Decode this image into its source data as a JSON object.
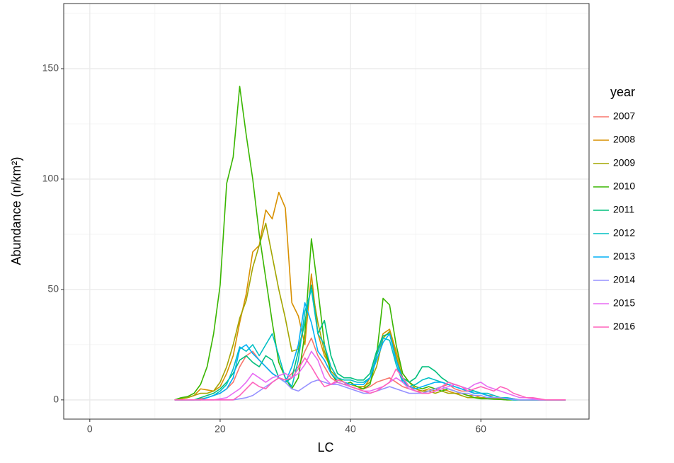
{
  "chart_data": {
    "type": "line",
    "x_label": "LC",
    "y_label": "Abundance (n/km²)",
    "legend_title": "year",
    "legend": "right",
    "xlim": [
      -4,
      76.6
    ],
    "xticks": [
      0,
      20,
      40,
      60
    ],
    "x_minor_ticks": [
      10,
      30,
      50,
      70
    ],
    "ylim": [
      -8.7,
      179.5
    ],
    "yticks": [
      0,
      50,
      100,
      150
    ],
    "y_minor_ticks": [
      25,
      75,
      125,
      175
    ],
    "grid": true,
    "x": [
      13,
      14,
      15,
      16,
      17,
      18,
      19,
      20,
      21,
      22,
      23,
      24,
      25,
      26,
      27,
      28,
      29,
      30,
      31,
      32,
      33,
      34,
      35,
      36,
      37,
      38,
      39,
      40,
      41,
      42,
      43,
      44,
      45,
      46,
      47,
      48,
      49,
      50,
      51,
      52,
      53,
      54,
      55,
      56,
      57,
      58,
      59,
      60,
      61,
      62,
      63,
      64,
      65,
      66,
      67,
      68,
      69,
      70,
      71,
      72,
      73
    ],
    "series": [
      {
        "name": "2007",
        "color": "#F8766D",
        "values": [
          0,
          0,
          0,
          0,
          0.5,
          1,
          2,
          3,
          5,
          8,
          15,
          20,
          22,
          18,
          15,
          12,
          10,
          9,
          12,
          15,
          22,
          28,
          20,
          15,
          10,
          8,
          7,
          6,
          5,
          5,
          6,
          8,
          9,
          10,
          8,
          6,
          5,
          4,
          4,
          4,
          5,
          6,
          7,
          5,
          4,
          4,
          3,
          3,
          2,
          2,
          1,
          1,
          0.5,
          0,
          0,
          0,
          0,
          0,
          0,
          0,
          0
        ]
      },
      {
        "name": "2008",
        "color": "#D89000",
        "values": [
          0,
          0.5,
          1,
          2,
          5,
          4.5,
          4,
          6,
          12,
          20,
          35,
          48,
          67,
          70,
          86,
          82,
          94,
          87,
          44,
          38,
          25,
          57,
          30,
          20,
          15,
          10,
          8,
          6,
          5,
          5,
          10,
          20,
          30,
          32,
          22,
          12,
          8,
          5,
          4,
          5,
          4,
          5,
          4,
          3,
          3,
          2,
          2,
          1,
          1,
          0.5,
          0.5,
          0.3,
          0.2,
          0,
          0,
          0,
          0,
          0,
          0,
          0,
          0
        ]
      },
      {
        "name": "2009",
        "color": "#A3A500",
        "values": [
          0,
          0.5,
          1,
          2,
          3,
          3,
          4,
          8,
          15,
          25,
          37,
          45,
          60,
          70,
          80,
          65,
          50,
          37,
          22,
          23,
          35,
          52,
          35,
          22,
          13,
          10,
          8,
          7,
          6,
          6,
          8,
          15,
          28,
          31,
          20,
          10,
          6,
          5,
          4,
          4,
          3,
          4,
          3,
          3,
          2,
          1,
          1,
          1,
          1,
          0.5,
          0.3,
          0,
          0,
          0,
          0,
          0,
          0,
          0,
          0,
          0,
          0
        ]
      },
      {
        "name": "2010",
        "color": "#39B600",
        "values": [
          0,
          1,
          1.5,
          3,
          7,
          15,
          30,
          52,
          98,
          110,
          142,
          120,
          100,
          75,
          55,
          35,
          17,
          10,
          5,
          10,
          30,
          73,
          50,
          25,
          12,
          8,
          7,
          8,
          6,
          5,
          7,
          20,
          46,
          43,
          25,
          12,
          8,
          6,
          5,
          6,
          5,
          4,
          5,
          4,
          3,
          2,
          1,
          0.5,
          0.5,
          0.3,
          0.2,
          0,
          0,
          0,
          0,
          0,
          0,
          0,
          0,
          0,
          0
        ]
      },
      {
        "name": "2011",
        "color": "#00BF7D",
        "values": [
          0,
          0,
          0,
          0,
          1,
          2,
          3,
          5,
          8,
          12,
          18,
          20,
          17,
          15,
          20,
          18,
          10,
          8,
          10,
          22,
          35,
          52,
          30,
          36,
          20,
          12,
          10,
          10,
          9,
          9,
          12,
          22,
          29,
          30,
          18,
          10,
          8,
          10,
          15,
          15,
          13,
          10,
          8,
          7,
          6,
          5,
          4,
          3,
          2,
          1,
          1,
          0.5,
          0,
          0,
          0,
          0,
          0,
          0,
          0,
          0,
          0
        ]
      },
      {
        "name": "2012",
        "color": "#00BFC4",
        "values": [
          0,
          0,
          0,
          0,
          0,
          1,
          2,
          4,
          7,
          14,
          24,
          22,
          25,
          20,
          25,
          30,
          20,
          10,
          6,
          18,
          40,
          50,
          30,
          25,
          15,
          10,
          9,
          9,
          8,
          8,
          10,
          20,
          28,
          27,
          16,
          8,
          6,
          7,
          9,
          10,
          9,
          8,
          7,
          6,
          5,
          4,
          4,
          3,
          3,
          2,
          1,
          1,
          0.5,
          0,
          0,
          0,
          0,
          0,
          0,
          0,
          0
        ]
      },
      {
        "name": "2013",
        "color": "#00B0F6",
        "values": [
          0,
          0,
          0,
          0,
          0,
          1,
          2,
          3,
          5,
          10,
          23,
          25,
          21,
          18,
          15,
          12,
          10,
          8,
          15,
          25,
          44,
          35,
          22,
          18,
          12,
          9,
          8,
          7,
          7,
          7,
          10,
          18,
          26,
          30,
          18,
          9,
          6,
          5,
          6,
          7,
          8,
          8,
          7,
          6,
          5,
          4,
          3,
          3,
          2,
          1,
          1,
          0.5,
          0,
          0,
          0,
          0,
          0,
          0,
          0,
          0,
          0
        ]
      },
      {
        "name": "2014",
        "color": "#9590FF",
        "values": [
          0,
          0,
          0,
          0,
          0,
          0,
          0,
          0,
          0,
          0,
          0.5,
          1,
          2,
          4,
          6,
          8,
          10,
          8,
          5,
          4,
          6,
          8,
          9,
          8,
          7,
          7,
          6,
          5,
          4,
          3,
          3,
          4,
          5,
          6,
          5,
          4,
          3,
          3,
          3,
          4,
          5,
          6,
          5,
          4,
          3,
          3,
          2,
          2,
          1,
          1,
          1,
          0.5,
          0.3,
          0,
          0,
          0,
          0,
          0,
          0,
          0,
          0
        ]
      },
      {
        "name": "2015",
        "color": "#E76BF3",
        "values": [
          0,
          0,
          0,
          0,
          0,
          0,
          0,
          0.5,
          1,
          3,
          5,
          8,
          12,
          10,
          8,
          10,
          11,
          12,
          10,
          12,
          16,
          22,
          18,
          10,
          7,
          8,
          7,
          6,
          5,
          4,
          4,
          5,
          6,
          8,
          10,
          8,
          5,
          4,
          3,
          3,
          4,
          5,
          6,
          7,
          6,
          5,
          7,
          8,
          6,
          5,
          4,
          3,
          2,
          1,
          1,
          0.5,
          0,
          0,
          0,
          0,
          0
        ]
      },
      {
        "name": "2016",
        "color": "#FF62BC",
        "values": [
          0,
          0,
          0,
          0,
          0,
          0,
          0,
          0,
          0,
          0,
          2,
          5,
          8,
          6,
          5,
          8,
          10,
          9,
          10,
          14,
          19,
          15,
          10,
          6,
          7,
          9,
          8,
          6,
          5,
          4,
          3,
          4,
          6,
          8,
          14,
          10,
          6,
          4,
          3,
          3,
          4,
          6,
          8,
          7,
          6,
          4,
          5,
          6,
          5,
          4,
          6,
          5,
          3,
          2,
          1,
          1,
          0.5,
          0,
          0,
          0,
          0
        ]
      }
    ]
  }
}
